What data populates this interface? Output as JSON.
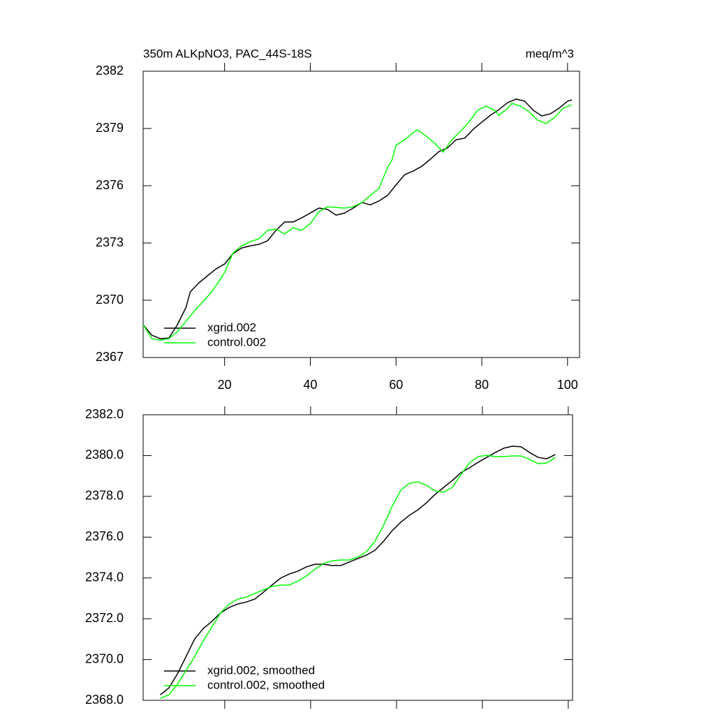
{
  "chart_data": [
    {
      "type": "line",
      "title": "350m ALKpNO3, PAC_44S-18S",
      "units": "meq/m^3",
      "xlim": [
        1,
        102.8
      ],
      "xticks": [
        20,
        40,
        60,
        80,
        100
      ],
      "show_xtick_labels": true,
      "ylim": [
        2367,
        2382
      ],
      "yticks": [
        2367,
        2370,
        2373,
        2376,
        2379,
        2382
      ],
      "legend": "lower left",
      "series": [
        {
          "name": "xgrid.002",
          "color": "#000000",
          "x": [
            1,
            3,
            5,
            7,
            9,
            11,
            12,
            14,
            16,
            18,
            20,
            22,
            24,
            26,
            28,
            30,
            32,
            34,
            36,
            38,
            40,
            42,
            44,
            46,
            48,
            50,
            52,
            54,
            56,
            58,
            60,
            62,
            64,
            66,
            68,
            70,
            72,
            74,
            76,
            78,
            80,
            82,
            84,
            86,
            88,
            90,
            92,
            94,
            96,
            98,
            100,
            101
          ],
          "values": [
            2368.72,
            2368.17,
            2367.99,
            2368.02,
            2368.72,
            2369.63,
            2370.44,
            2370.91,
            2371.28,
            2371.64,
            2371.9,
            2372.45,
            2372.74,
            2372.85,
            2372.93,
            2373.11,
            2373.66,
            2374.1,
            2374.1,
            2374.32,
            2374.57,
            2374.83,
            2374.76,
            2374.46,
            2374.57,
            2374.83,
            2375.12,
            2375.0,
            2375.2,
            2375.49,
            2376.04,
            2376.58,
            2376.77,
            2377.02,
            2377.39,
            2377.79,
            2377.98,
            2378.41,
            2378.49,
            2378.96,
            2379.33,
            2379.69,
            2379.99,
            2380.35,
            2380.54,
            2380.43,
            2379.95,
            2379.66,
            2379.77,
            2380.06,
            2380.43,
            2380.5
          ]
        },
        {
          "name": "control.002",
          "color": "#00ff00",
          "x": [
            1,
            3,
            5,
            7,
            9,
            11,
            13,
            15,
            17,
            19,
            20,
            22,
            24,
            26,
            28,
            30,
            32,
            34,
            36,
            38,
            40,
            42,
            44,
            46,
            48,
            50,
            52,
            54,
            56,
            58,
            59,
            60,
            62,
            64,
            65,
            67,
            69,
            71,
            73,
            75,
            77,
            79,
            81,
            83,
            84,
            86,
            87,
            89,
            91,
            93,
            95,
            97,
            99,
            101
          ],
          "values": [
            2368.72,
            2367.99,
            2367.91,
            2367.99,
            2368.35,
            2368.9,
            2369.45,
            2369.93,
            2370.44,
            2371.1,
            2371.46,
            2372.49,
            2372.85,
            2373.07,
            2373.22,
            2373.66,
            2373.73,
            2373.47,
            2373.8,
            2373.66,
            2374.02,
            2374.64,
            2374.9,
            2374.86,
            2374.83,
            2374.9,
            2375.12,
            2375.49,
            2375.85,
            2376.95,
            2377.32,
            2378.12,
            2378.41,
            2378.78,
            2378.93,
            2378.6,
            2378.23,
            2377.76,
            2378.41,
            2378.85,
            2379.33,
            2379.95,
            2380.17,
            2379.95,
            2379.69,
            2380.06,
            2380.32,
            2380.17,
            2379.88,
            2379.44,
            2379.26,
            2379.59,
            2380.06,
            2380.24
          ]
        }
      ]
    },
    {
      "type": "line",
      "xlim": [
        1,
        101
      ],
      "xticks": [
        20,
        40,
        60,
        80,
        100
      ],
      "show_xtick_labels": false,
      "ylim": [
        2368,
        2382
      ],
      "yticks": [
        {
          "value": 2368,
          "label": "2368.0"
        },
        {
          "value": 2370,
          "label": "2370.0"
        },
        {
          "value": 2372,
          "label": "2372.0"
        },
        {
          "value": 2374,
          "label": "2374.0"
        },
        {
          "value": 2376,
          "label": "2376.0"
        },
        {
          "value": 2378,
          "label": "2378.0"
        },
        {
          "value": 2380,
          "label": "2380.0"
        },
        {
          "value": 2382,
          "label": "2382.0"
        }
      ],
      "legend": "lower left",
      "x": [
        5,
        7,
        9,
        11,
        13,
        15,
        17,
        19,
        21,
        23,
        25,
        27,
        29,
        31,
        33,
        35,
        37,
        39,
        41,
        43,
        45,
        47,
        49,
        51,
        53,
        55,
        57,
        59,
        61,
        63,
        65,
        67,
        69,
        71,
        73,
        75,
        77,
        79,
        81,
        83,
        85,
        87,
        89,
        91,
        93,
        95,
        97
      ],
      "series": [
        {
          "name": "xgrid.002, smoothed",
          "color": "#000000",
          "values": [
            2368.27,
            2368.61,
            2369.3,
            2370.15,
            2371.01,
            2371.52,
            2371.87,
            2372.28,
            2372.55,
            2372.72,
            2372.82,
            2372.96,
            2373.3,
            2373.65,
            2373.99,
            2374.19,
            2374.33,
            2374.54,
            2374.67,
            2374.67,
            2374.61,
            2374.61,
            2374.78,
            2374.95,
            2375.12,
            2375.36,
            2375.8,
            2376.32,
            2376.73,
            2377.07,
            2377.34,
            2377.69,
            2378.1,
            2378.44,
            2378.78,
            2379.16,
            2379.4,
            2379.67,
            2379.91,
            2380.15,
            2380.36,
            2380.46,
            2380.43,
            2380.15,
            2379.91,
            2379.84,
            2380.05
          ]
        },
        {
          "name": "control.002, smoothed",
          "color": "#00ff00",
          "values": [
            2368.1,
            2368.27,
            2368.79,
            2369.47,
            2370.15,
            2370.91,
            2371.59,
            2372.28,
            2372.72,
            2372.96,
            2373.06,
            2373.24,
            2373.41,
            2373.58,
            2373.65,
            2373.65,
            2373.85,
            2374.09,
            2374.43,
            2374.71,
            2374.84,
            2374.88,
            2374.88,
            2375.02,
            2375.29,
            2375.8,
            2376.59,
            2377.52,
            2378.3,
            2378.64,
            2378.71,
            2378.54,
            2378.27,
            2378.2,
            2378.44,
            2379.06,
            2379.64,
            2379.95,
            2380.01,
            2379.95,
            2379.95,
            2379.98,
            2379.98,
            2379.81,
            2379.6,
            2379.64,
            2379.91
          ]
        }
      ]
    }
  ]
}
